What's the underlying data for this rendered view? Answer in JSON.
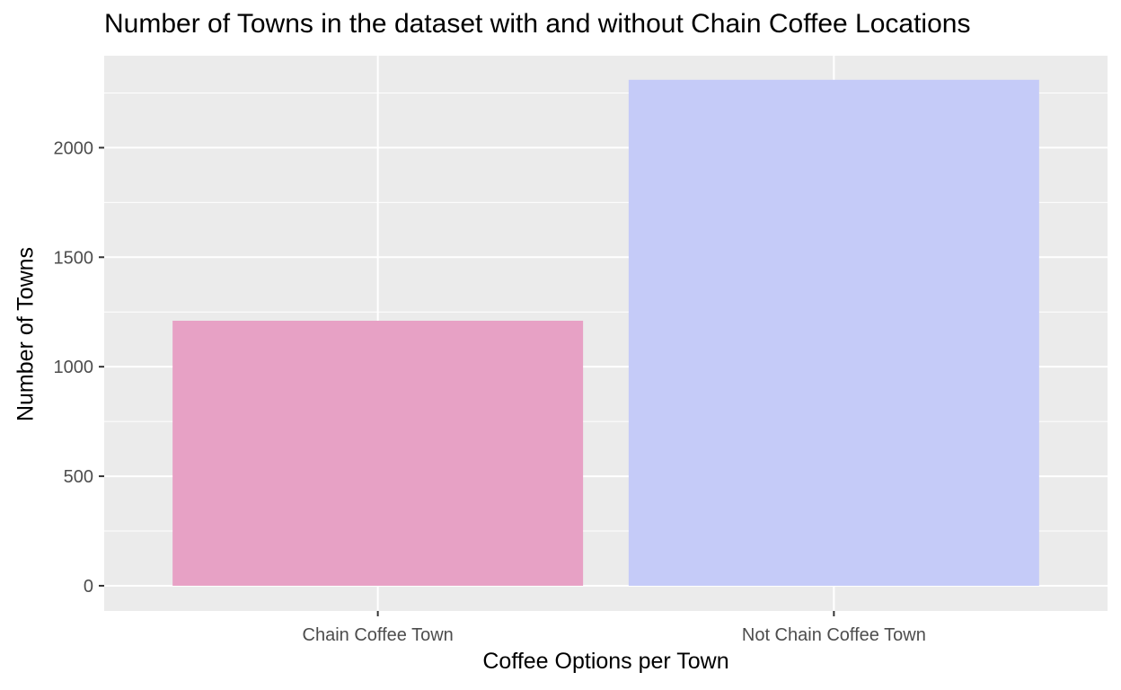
{
  "chart_data": {
    "type": "bar",
    "title": "Number of Towns in the dataset with and without Chain Coffee Locations",
    "xlabel": "Coffee Options per Town",
    "ylabel": "Number of Towns",
    "categories": [
      "Chain Coffee Town",
      "Not Chain Coffee Town"
    ],
    "values": [
      1210,
      2310
    ],
    "colors": [
      "#e7a1c5",
      "#c5cbf8"
    ],
    "ylim": [
      -115,
      2420
    ],
    "yticks": [
      0,
      500,
      1000,
      1500,
      2000
    ],
    "ytick_labels": [
      "0",
      "500",
      "1000",
      "1500",
      "2000"
    ],
    "grid": true,
    "panel_background": "#ebebeb",
    "grid_color": "#ffffff"
  }
}
